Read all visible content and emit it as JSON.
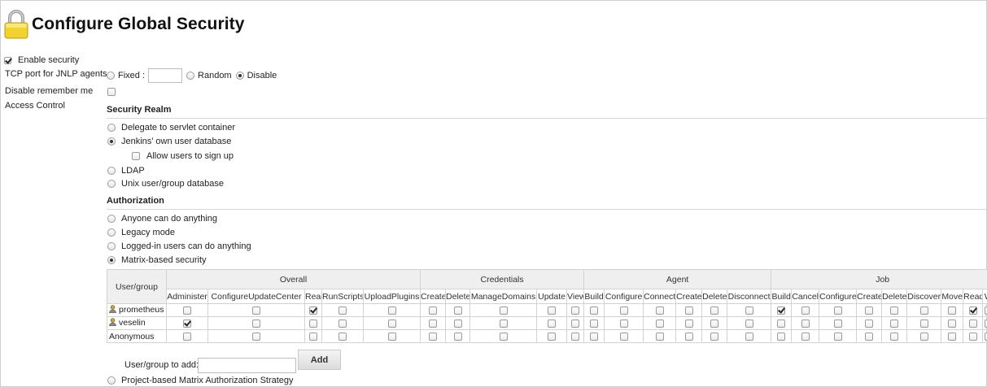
{
  "page": {
    "title": "Configure Global Security"
  },
  "enable_security": {
    "label": "Enable security",
    "checked": true
  },
  "tcp_port": {
    "label": "TCP port for JNLP agents",
    "options": [
      {
        "label": "Fixed :",
        "checked": false
      },
      {
        "label": "Random",
        "checked": false
      },
      {
        "label": "Disable",
        "checked": true
      }
    ],
    "fixed_value": ""
  },
  "remember_me": {
    "label": "Disable remember me",
    "checked": false
  },
  "access_control": {
    "label": "Access Control"
  },
  "security_realm": {
    "heading": "Security Realm",
    "options": [
      {
        "label": "Delegate to servlet container",
        "checked": false
      },
      {
        "label": "Jenkins’ own user database",
        "checked": true
      },
      {
        "label": "LDAP",
        "checked": false
      },
      {
        "label": "Unix user/group database",
        "checked": false
      }
    ],
    "allow_signup": {
      "label": "Allow users to sign up",
      "checked": false
    }
  },
  "authorization": {
    "heading": "Authorization",
    "options": [
      {
        "label": "Anyone can do anything",
        "checked": false
      },
      {
        "label": "Legacy mode",
        "checked": false
      },
      {
        "label": "Logged-in users can do anything",
        "checked": false
      },
      {
        "label": "Matrix-based security",
        "checked": true
      }
    ],
    "last_option": {
      "label": "Project-based Matrix Authorization Strategy",
      "checked": false
    }
  },
  "matrix": {
    "user_group_header": "User/group",
    "groups": [
      {
        "name": "Overall",
        "permissions": [
          "Administer",
          "ConfigureUpdateCenter",
          "Read",
          "RunScripts",
          "UploadPlugins"
        ]
      },
      {
        "name": "Credentials",
        "permissions": [
          "Create",
          "Delete",
          "ManageDomains",
          "Update",
          "View"
        ]
      },
      {
        "name": "Agent",
        "permissions": [
          "Build",
          "Configure",
          "Connect",
          "Create",
          "Delete",
          "Disconnect"
        ]
      },
      {
        "name": "Job",
        "permissions": [
          "Build",
          "Cancel",
          "Configure",
          "Create",
          "Delete",
          "Discover",
          "Move",
          "Read",
          "W"
        ]
      }
    ],
    "rows": [
      {
        "name": "prometheus",
        "user_icon": true,
        "checked": [
          false,
          false,
          true,
          false,
          false,
          false,
          false,
          false,
          false,
          false,
          false,
          false,
          false,
          false,
          false,
          false,
          true,
          false,
          false,
          false,
          false,
          false,
          false,
          true,
          false
        ]
      },
      {
        "name": "veselin",
        "user_icon": true,
        "checked": [
          true,
          false,
          false,
          false,
          false,
          false,
          false,
          false,
          false,
          false,
          false,
          false,
          false,
          false,
          false,
          false,
          false,
          false,
          false,
          false,
          false,
          false,
          false,
          false,
          false
        ]
      },
      {
        "name": "Anonymous",
        "user_icon": false,
        "checked": [
          false,
          false,
          false,
          false,
          false,
          false,
          false,
          false,
          false,
          false,
          false,
          false,
          false,
          false,
          false,
          false,
          false,
          false,
          false,
          false,
          false,
          false,
          false,
          false,
          false
        ]
      }
    ],
    "add_label": "User/group to add:",
    "add_value": "",
    "add_button": "Add"
  },
  "colors": {
    "lock_body": "#f2d22e",
    "lock_shackle": "#a9a9a9"
  }
}
